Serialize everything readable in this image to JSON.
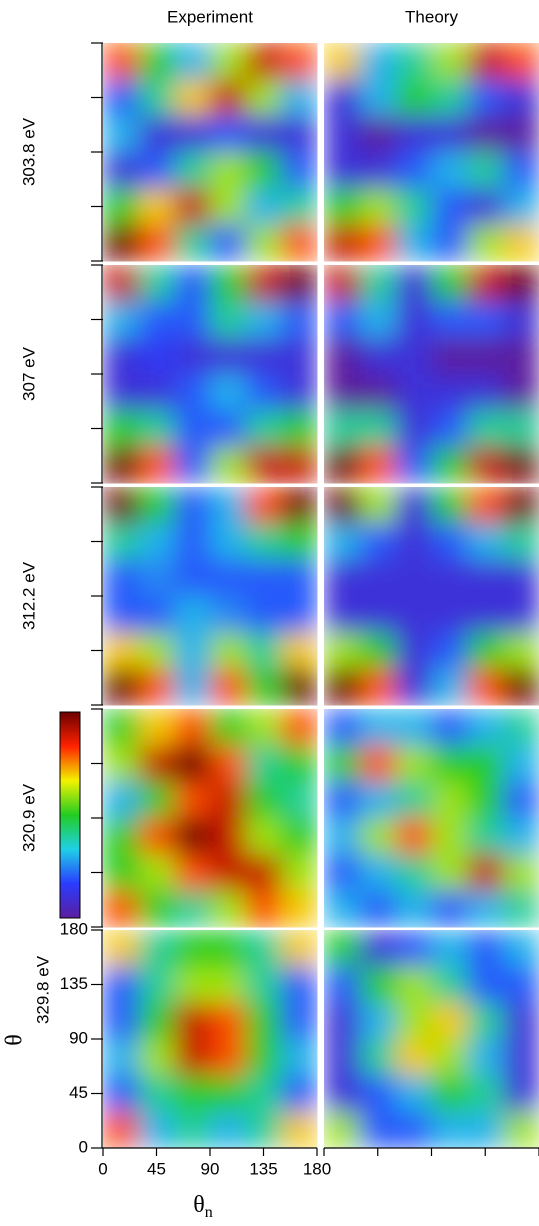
{
  "chart_data": {
    "type": "heatmap",
    "column_titles": [
      "Experiment",
      "Theory"
    ],
    "xlabel": "θ",
    "xlabel_sub": "n",
    "ylabel": "θ",
    "xlim": [
      0,
      180
    ],
    "xticks": [
      0,
      45,
      90,
      135,
      180
    ],
    "ylim": [
      0,
      180
    ],
    "yticks": [
      0,
      45,
      90,
      135,
      180
    ],
    "zlim": [
      0,
      1
    ],
    "colorscale": [
      "#5b1e9e",
      "#2a3cff",
      "#1fd0e6",
      "#22cc22",
      "#f2f200",
      "#ff2200",
      "#6b0000"
    ],
    "panels": [
      {
        "label": "303.8 eV",
        "experiment": [
          [
            0.8,
            0.5,
            0.3,
            0.6,
            0.9,
            0.8
          ],
          [
            0.2,
            0.4,
            0.7,
            0.9,
            0.6,
            0.3
          ],
          [
            0.3,
            0.1,
            0.1,
            0.2,
            0.1,
            0.1
          ],
          [
            0.1,
            0.2,
            0.4,
            0.6,
            0.5,
            0.2
          ],
          [
            0.5,
            0.7,
            0.9,
            0.6,
            0.3,
            0.4
          ],
          [
            1.0,
            0.8,
            0.4,
            0.2,
            0.6,
            0.8
          ]
        ],
        "theory": [
          [
            0.7,
            0.3,
            0.4,
            0.6,
            0.9,
            0.8
          ],
          [
            0.1,
            0.3,
            0.5,
            0.4,
            0.2,
            0.1
          ],
          [
            0.1,
            0.0,
            0.1,
            0.1,
            0.0,
            0.0
          ],
          [
            0.1,
            0.1,
            0.2,
            0.3,
            0.4,
            0.2
          ],
          [
            0.5,
            0.6,
            0.4,
            0.2,
            0.1,
            0.3
          ],
          [
            0.9,
            0.8,
            0.3,
            0.2,
            0.6,
            0.7
          ]
        ]
      },
      {
        "label": "307 eV",
        "experiment": [
          [
            0.9,
            0.4,
            0.2,
            0.5,
            0.9,
            1.0
          ],
          [
            0.3,
            0.2,
            0.2,
            0.4,
            0.3,
            0.2
          ],
          [
            0.1,
            0.15,
            0.1,
            0.1,
            0.1,
            0.1
          ],
          [
            0.1,
            0.1,
            0.2,
            0.3,
            0.2,
            0.1
          ],
          [
            0.5,
            0.4,
            0.2,
            0.2,
            0.4,
            0.5
          ],
          [
            1.0,
            0.8,
            0.2,
            0.6,
            0.9,
            0.9
          ]
        ],
        "theory": [
          [
            0.9,
            0.4,
            0.1,
            0.5,
            0.9,
            1.0
          ],
          [
            0.2,
            0.3,
            0.1,
            0.2,
            0.2,
            0.1
          ],
          [
            0.0,
            0.1,
            0.1,
            0.0,
            0.0,
            0.0
          ],
          [
            0.0,
            0.0,
            0.1,
            0.1,
            0.1,
            0.0
          ],
          [
            0.4,
            0.4,
            0.1,
            0.2,
            0.4,
            0.4
          ],
          [
            1.0,
            0.8,
            0.2,
            0.5,
            0.9,
            1.0
          ]
        ]
      },
      {
        "label": "312.2 eV",
        "experiment": [
          [
            1.0,
            0.5,
            0.2,
            0.3,
            0.8,
            1.0
          ],
          [
            0.4,
            0.3,
            0.2,
            0.3,
            0.4,
            0.5
          ],
          [
            0.2,
            0.25,
            0.2,
            0.2,
            0.2,
            0.2
          ],
          [
            0.2,
            0.2,
            0.3,
            0.25,
            0.2,
            0.2
          ],
          [
            0.7,
            0.6,
            0.3,
            0.6,
            0.4,
            0.7
          ],
          [
            1.0,
            0.8,
            0.3,
            0.8,
            0.5,
            1.0
          ]
        ],
        "theory": [
          [
            1.0,
            0.6,
            0.1,
            0.5,
            0.8,
            1.0
          ],
          [
            0.3,
            0.2,
            0.1,
            0.2,
            0.3,
            0.4
          ],
          [
            0.1,
            0.1,
            0.1,
            0.1,
            0.1,
            0.1
          ],
          [
            0.1,
            0.1,
            0.1,
            0.1,
            0.1,
            0.1
          ],
          [
            0.6,
            0.5,
            0.1,
            0.2,
            0.5,
            0.6
          ],
          [
            1.0,
            0.8,
            0.1,
            0.3,
            0.8,
            1.0
          ]
        ]
      },
      {
        "label": "320.9 eV",
        "experiment": [
          [
            0.5,
            0.7,
            0.8,
            0.5,
            0.6,
            0.8
          ],
          [
            0.6,
            0.9,
            1.0,
            0.8,
            0.4,
            0.5
          ],
          [
            0.3,
            0.5,
            0.8,
            0.9,
            0.5,
            0.4
          ],
          [
            0.5,
            0.8,
            1.0,
            0.9,
            0.6,
            0.5
          ],
          [
            0.5,
            0.6,
            0.8,
            0.9,
            0.9,
            0.6
          ],
          [
            0.8,
            0.5,
            0.4,
            0.6,
            0.8,
            0.7
          ]
        ],
        "theory": [
          [
            0.2,
            0.3,
            0.3,
            0.2,
            0.3,
            0.4
          ],
          [
            0.5,
            0.8,
            0.6,
            0.5,
            0.5,
            0.3
          ],
          [
            0.2,
            0.3,
            0.4,
            0.6,
            0.5,
            0.2
          ],
          [
            0.3,
            0.6,
            0.8,
            0.6,
            0.4,
            0.3
          ],
          [
            0.2,
            0.3,
            0.4,
            0.6,
            0.9,
            0.6
          ],
          [
            0.3,
            0.2,
            0.3,
            0.2,
            0.3,
            0.4
          ]
        ]
      },
      {
        "label": "329.8 eV",
        "experiment": [
          [
            0.7,
            0.4,
            0.5,
            0.5,
            0.4,
            0.7
          ],
          [
            0.2,
            0.4,
            0.6,
            0.6,
            0.4,
            0.2
          ],
          [
            0.2,
            0.5,
            0.9,
            0.8,
            0.5,
            0.2
          ],
          [
            0.3,
            0.6,
            0.9,
            0.8,
            0.5,
            0.3
          ],
          [
            0.2,
            0.4,
            0.5,
            0.5,
            0.4,
            0.2
          ],
          [
            0.8,
            0.3,
            0.4,
            0.3,
            0.4,
            0.7
          ]
        ],
        "theory": [
          [
            0.5,
            0.1,
            0.2,
            0.3,
            0.2,
            0.3
          ],
          [
            0.2,
            0.5,
            0.6,
            0.4,
            0.2,
            0.2
          ],
          [
            0.1,
            0.3,
            0.6,
            0.7,
            0.4,
            0.1
          ],
          [
            0.1,
            0.4,
            0.7,
            0.6,
            0.3,
            0.1
          ],
          [
            0.1,
            0.2,
            0.3,
            0.5,
            0.4,
            0.1
          ],
          [
            0.6,
            0.2,
            0.2,
            0.3,
            0.3,
            0.6
          ]
        ]
      }
    ]
  }
}
